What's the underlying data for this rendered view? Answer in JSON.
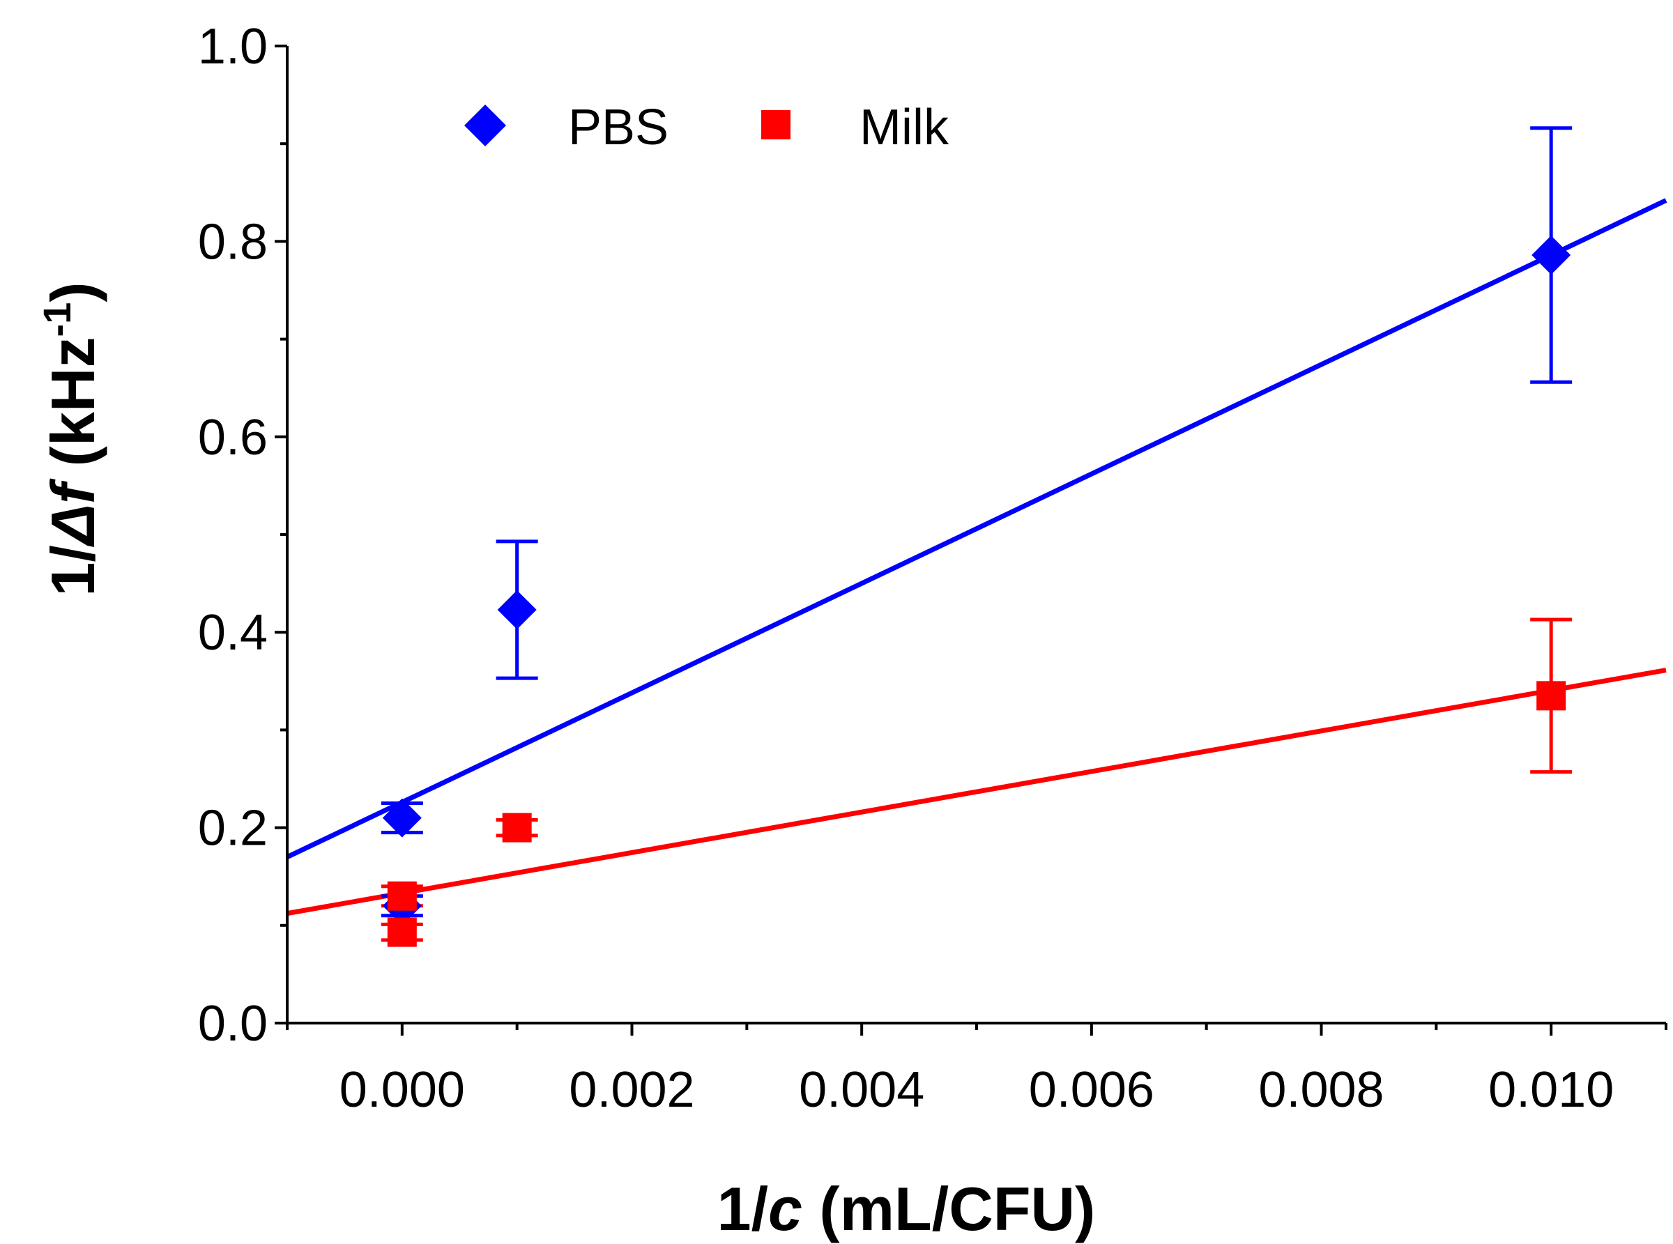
{
  "chart_data": {
    "type": "scatter",
    "xlabel": {
      "prefix": "1/",
      "italic": "c",
      "suffix": " (mL/CFU)"
    },
    "ylabel": {
      "prefix": "1/",
      "italic": "Δf",
      "suffix": " (kHz",
      "superscript": "-1",
      "close": ")"
    },
    "xlim": [
      -0.001,
      0.011
    ],
    "ylim": [
      0.0,
      1.0
    ],
    "x_ticks": [
      0.0,
      0.002,
      0.004,
      0.006,
      0.008,
      0.01
    ],
    "x_tick_labels": [
      "0.000",
      "0.002",
      "0.004",
      "0.006",
      "0.008",
      "0.010"
    ],
    "x_minor_ticks": [
      -0.001,
      0.001,
      0.003,
      0.005,
      0.007,
      0.009,
      0.011
    ],
    "y_ticks": [
      0.0,
      0.2,
      0.4,
      0.6,
      0.8,
      1.0
    ],
    "y_tick_labels": [
      "0.0",
      "0.2",
      "0.4",
      "0.6",
      "0.8",
      "1.0"
    ],
    "y_minor_ticks": [
      0.1,
      0.3,
      0.5,
      0.7,
      0.9
    ],
    "legend_position": "top-left",
    "series": [
      {
        "name": "PBS",
        "color": "#0000ff",
        "marker": "diamond",
        "points": [
          {
            "x": 0.0,
            "y": 0.21,
            "err": 0.015
          },
          {
            "x": 0.0,
            "y": 0.12,
            "err": 0.01
          },
          {
            "x": 0.001,
            "y": 0.423,
            "err": 0.07
          },
          {
            "x": 0.01,
            "y": 0.786,
            "err": 0.13
          }
        ],
        "fit": {
          "slope": 56.0,
          "intercept": 0.226
        }
      },
      {
        "name": "Milk",
        "color": "#ff0000",
        "marker": "square",
        "points": [
          {
            "x": 0.0,
            "y": 0.13,
            "err": 0.01
          },
          {
            "x": 0.0,
            "y": 0.093,
            "err": 0.008
          },
          {
            "x": 0.001,
            "y": 0.2,
            "err": 0.008
          },
          {
            "x": 0.01,
            "y": 0.335,
            "err": 0.078
          }
        ],
        "fit": {
          "slope": 20.75,
          "intercept": 0.133
        }
      }
    ]
  }
}
